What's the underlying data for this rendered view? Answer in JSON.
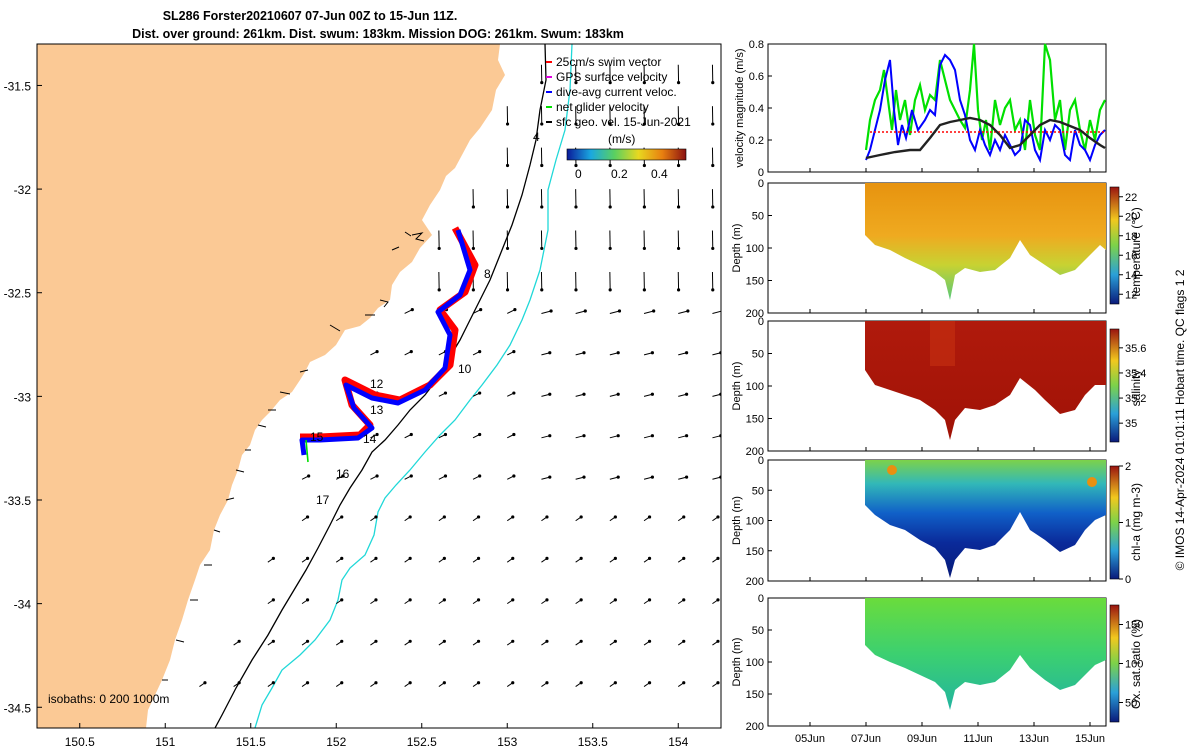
{
  "title": {
    "line1": "SL286 Forster20210607 07-Jun 00Z to 15-Jun 11Z.",
    "line2": "Dist. over ground: 261km. Dist. swum: 183km. Mission DOG: 261km. Swum: 183km"
  },
  "colors": {
    "land": "#fbc995",
    "track_red": "#ff0000",
    "track_blue": "#0000ff",
    "net_green": "#00e000",
    "isobath_200": "#000000",
    "isobath_1000": "#20d8d8"
  },
  "chart_data": [
    {
      "id": "map",
      "type": "scatter",
      "xlim": [
        150.25,
        154.25
      ],
      "ylim": [
        -34.6,
        -31.3
      ],
      "x_ticks": [
        "150.5",
        "151",
        "151.5",
        "152",
        "152.5",
        "153",
        "153.5",
        "154"
      ],
      "y_ticks": [
        "-31.5",
        "-32",
        "-32.5",
        "-33",
        "-33.5",
        "-34",
        "-34.5"
      ],
      "legend": [
        "25cm/s swim vector",
        "GPS surface velocity",
        "dive-avg current veloc.",
        "net glider velocity",
        "sfc geo. vel. 15-Jun-2021"
      ],
      "colorbar": {
        "unit": "(m/s)",
        "ticks": [
          "0",
          "0.2",
          "0.4"
        ],
        "range": [
          0,
          0.55
        ]
      },
      "day_labels": [
        {
          "text": "4",
          "lon": 153.12,
          "lat": -31.72
        },
        {
          "text": "8",
          "lon": 152.77,
          "lat": -32.39
        },
        {
          "text": "10",
          "lon": 152.64,
          "lat": -32.86
        },
        {
          "text": "12",
          "lon": 152.21,
          "lat": -32.94
        },
        {
          "text": "13",
          "lon": 152.21,
          "lat": -33.07
        },
        {
          "text": "14",
          "lon": 152.16,
          "lat": -33.21
        },
        {
          "text": "15",
          "lon": 151.89,
          "lat": -33.2
        },
        {
          "text": "16",
          "lon": 152.01,
          "lat": -33.39
        },
        {
          "text": "17",
          "lon": 151.89,
          "lat": -33.52
        }
      ],
      "isobath_label": "isobaths: 0   200  1000m"
    },
    {
      "id": "velocity",
      "type": "line",
      "ylabel": "velocity magnitude (m/s)",
      "ylim": [
        0,
        0.8
      ],
      "y_ticks": [
        "0",
        "0.2",
        "0.4",
        "0.6",
        "0.8"
      ]
    },
    {
      "id": "temperature",
      "type": "heatmap",
      "ylabel": "Depth (m)",
      "cbar_label": "temperature (°C)",
      "cbar_ticks": [
        "12",
        "14",
        "16",
        "18",
        "20",
        "22"
      ],
      "y_ticks": [
        "0",
        "50",
        "100",
        "150",
        "200"
      ]
    },
    {
      "id": "salinity",
      "type": "heatmap",
      "ylabel": "Depth (m)",
      "cbar_label": "salinity",
      "cbar_ticks": [
        "35",
        "35.2",
        "35.4",
        "35.6"
      ],
      "y_ticks": [
        "0",
        "50",
        "100",
        "150",
        "200"
      ]
    },
    {
      "id": "chla",
      "type": "heatmap",
      "ylabel": "Depth (m)",
      "cbar_label": "chl-a (mg m-3)",
      "cbar_ticks": [
        "0",
        "1",
        "2"
      ],
      "y_ticks": [
        "0",
        "50",
        "100",
        "150",
        "200"
      ]
    },
    {
      "id": "oxygen",
      "type": "heatmap",
      "ylabel": "Depth (m)",
      "cbar_label": "Ox. sat. ratio (%)",
      "cbar_ticks": [
        "50",
        "100",
        "150"
      ],
      "y_ticks": [
        "0",
        "50",
        "100",
        "150",
        "200"
      ]
    }
  ],
  "time_axis": {
    "ticks": [
      "05Jun",
      "07Jun",
      "09Jun",
      "11Jun",
      "13Jun",
      "15Jun"
    ]
  },
  "credit": "© IMOS 14-Apr-2024 01:01:11 Hobart time. QC flags 1  2"
}
